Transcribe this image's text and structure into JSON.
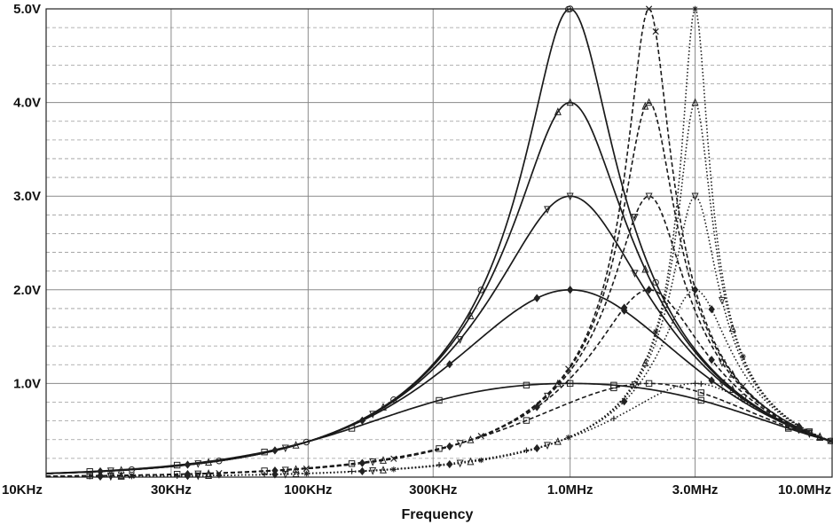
{
  "chart_data": {
    "type": "line",
    "xlabel": "Frequency",
    "ylabel": "",
    "x_scale": "log",
    "x_ticks": [
      {
        "value": 10000,
        "label": "10KHz"
      },
      {
        "value": 30000,
        "label": "30KHz"
      },
      {
        "value": 100000,
        "label": "100KHz"
      },
      {
        "value": 300000,
        "label": "300KHz"
      },
      {
        "value": 1000000,
        "label": "1.0MHz"
      },
      {
        "value": 3000000,
        "label": "3.0MHz"
      },
      {
        "value": 10000000,
        "label": "10.0MHz"
      }
    ],
    "y_ticks": [
      {
        "value": 1.0,
        "label": "1.0V"
      },
      {
        "value": 2.0,
        "label": "2.0V"
      },
      {
        "value": 3.0,
        "label": "3.0V"
      },
      {
        "value": 4.0,
        "label": "4.0V"
      },
      {
        "value": 5.0,
        "label": "5.0V"
      }
    ],
    "xlim": [
      10000,
      10000000
    ],
    "ylim": [
      0,
      5.0
    ],
    "grid": true,
    "series": [
      {
        "group": "1.0MHz",
        "style": "solid",
        "marker": "square",
        "peak_freq": 1000000,
        "peak_v": 1.0
      },
      {
        "group": "1.0MHz",
        "style": "solid",
        "marker": "diamond",
        "peak_freq": 1000000,
        "peak_v": 2.0
      },
      {
        "group": "1.0MHz",
        "style": "solid",
        "marker": "triangle-down",
        "peak_freq": 1000000,
        "peak_v": 3.0
      },
      {
        "group": "1.0MHz",
        "style": "solid",
        "marker": "triangle-up",
        "peak_freq": 1000000,
        "peak_v": 4.0
      },
      {
        "group": "1.0MHz",
        "style": "solid",
        "marker": "circle",
        "peak_freq": 1000000,
        "peak_v": 5.0
      },
      {
        "group": "2.0MHz",
        "style": "dashed",
        "marker": "square",
        "peak_freq": 2000000,
        "peak_v": 1.0
      },
      {
        "group": "2.0MHz",
        "style": "dashed",
        "marker": "diamond",
        "peak_freq": 2000000,
        "peak_v": 2.0
      },
      {
        "group": "2.0MHz",
        "style": "dashed",
        "marker": "triangle-down",
        "peak_freq": 2000000,
        "peak_v": 3.0
      },
      {
        "group": "2.0MHz",
        "style": "dashed",
        "marker": "triangle-up",
        "peak_freq": 2000000,
        "peak_v": 4.0
      },
      {
        "group": "2.0MHz",
        "style": "dashed",
        "marker": "x",
        "peak_freq": 2000000,
        "peak_v": 5.0
      },
      {
        "group": "3.0MHz",
        "style": "dotted",
        "marker": "plus",
        "peak_freq": 3000000,
        "peak_v": 1.0
      },
      {
        "group": "3.0MHz",
        "style": "dotted",
        "marker": "diamond",
        "peak_freq": 3000000,
        "peak_v": 2.0
      },
      {
        "group": "3.0MHz",
        "style": "dotted",
        "marker": "triangle-down",
        "peak_freq": 3000000,
        "peak_v": 3.0
      },
      {
        "group": "3.0MHz",
        "style": "dotted",
        "marker": "triangle-up",
        "peak_freq": 3000000,
        "peak_v": 4.0
      },
      {
        "group": "3.0MHz",
        "style": "dotted",
        "marker": "asterisk",
        "peak_freq": 3000000,
        "peak_v": 5.0
      }
    ],
    "end_value_at_10MHz": 0.38
  }
}
